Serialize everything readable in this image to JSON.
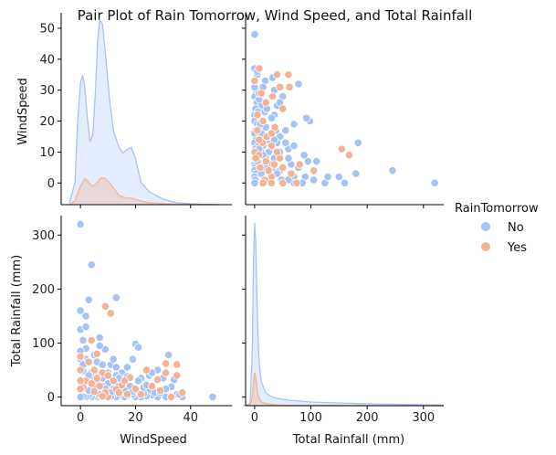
{
  "chart_data": {
    "type": "scatter",
    "title": "Pair Plot of Rain Tomorrow, Wind Speed, and Total Rainfall",
    "variables": [
      "WindSpeed",
      "Total Rainfall (mm)"
    ],
    "hue": {
      "title": "RainTomorrow",
      "levels": [
        {
          "name": "No",
          "color": "#a6c3f8"
        },
        {
          "name": "Yes",
          "color": "#f4b394"
        }
      ]
    },
    "axes": {
      "WindSpeed": {
        "label": "WindSpeed",
        "lim": [
          -7,
          55
        ],
        "ticks": [
          0,
          20,
          40
        ],
        "diag_ticks": [
          0,
          10,
          20,
          30,
          40,
          50
        ]
      },
      "Total Rainfall (mm)": {
        "label": "Total Rainfall (mm)",
        "lim": [
          -16,
          336
        ],
        "ticks": [
          0,
          100,
          200,
          300
        ]
      }
    },
    "diag_density_ylim": [
      0,
      1.0
    ],
    "diagonal": {
      "WindSpeed": {
        "type": "kde",
        "x": [
          -4,
          -2,
          -1,
          0,
          0.8,
          1.5,
          2.5,
          3.5,
          4.5,
          5.5,
          6.2,
          7.0,
          8.0,
          9.0,
          10.5,
          12,
          14,
          15.5,
          17,
          18.5,
          20,
          22,
          25,
          30,
          35,
          40,
          45,
          50
        ],
        "series": [
          {
            "name": "No",
            "values": [
              0.01,
              0.12,
              0.45,
              0.66,
              0.7,
              0.65,
              0.47,
              0.34,
              0.38,
              0.63,
              0.88,
              1.0,
              0.98,
              0.83,
              0.58,
              0.4,
              0.31,
              0.28,
              0.3,
              0.31,
              0.25,
              0.12,
              0.07,
              0.03,
              0.01,
              0.005,
              0.002,
              0.0
            ]
          },
          {
            "name": "Yes",
            "values": [
              0.0,
              0.02,
              0.06,
              0.1,
              0.12,
              0.14,
              0.13,
              0.11,
              0.1,
              0.11,
              0.12,
              0.14,
              0.145,
              0.14,
              0.12,
              0.09,
              0.05,
              0.04,
              0.035,
              0.035,
              0.03,
              0.02,
              0.01,
              0.005,
              0.002,
              0.0,
              0.0,
              0.0
            ]
          }
        ]
      },
      "Total Rainfall (mm)": {
        "type": "kde",
        "x": [
          -20,
          -8,
          -4,
          -2,
          0,
          2,
          4,
          6,
          8,
          12,
          20,
          30,
          40,
          60,
          100,
          200,
          320,
          336
        ],
        "series": [
          {
            "name": "No",
            "values": [
              0.0,
              0.01,
              0.3,
              0.78,
              1.0,
              0.9,
              0.62,
              0.38,
              0.24,
              0.13,
              0.07,
              0.05,
              0.04,
              0.03,
              0.02,
              0.01,
              0.004,
              0.003
            ]
          },
          {
            "name": "Yes",
            "values": [
              0.0,
              0.005,
              0.05,
              0.12,
              0.18,
              0.16,
              0.1,
              0.06,
              0.04,
              0.02,
              0.01,
              0.006,
              0.003,
              0.002,
              0.001,
              0.0,
              0.0,
              0.0
            ]
          }
        ]
      }
    },
    "points": {
      "No": [
        [
          48,
          0
        ],
        [
          37,
          0
        ],
        [
          35,
          5
        ],
        [
          33,
          0
        ],
        [
          30,
          10
        ],
        [
          29,
          3
        ],
        [
          28,
          0
        ],
        [
          26,
          4
        ],
        [
          25,
          12
        ],
        [
          24,
          2
        ],
        [
          23,
          6
        ],
        [
          22,
          0
        ],
        [
          20,
          0
        ],
        [
          19,
          5
        ],
        [
          18,
          9
        ],
        [
          17,
          2
        ],
        [
          16,
          0
        ],
        [
          15,
          14
        ],
        [
          14,
          3
        ],
        [
          13,
          0
        ],
        [
          12,
          6
        ],
        [
          11,
          1
        ],
        [
          10,
          0
        ],
        [
          9,
          4
        ],
        [
          8,
          0
        ],
        [
          7,
          2
        ],
        [
          6,
          0
        ],
        [
          5,
          1
        ],
        [
          4,
          0
        ],
        [
          3,
          2
        ],
        [
          2,
          0
        ],
        [
          1,
          1
        ],
        [
          0,
          0
        ],
        [
          33,
          19
        ],
        [
          28,
          50
        ],
        [
          25,
          40
        ],
        [
          22,
          35
        ],
        [
          20,
          98
        ],
        [
          19,
          70
        ],
        [
          17,
          55
        ],
        [
          15,
          45
        ],
        [
          13,
          40
        ],
        [
          12,
          30
        ],
        [
          11,
          60
        ],
        [
          10,
          25
        ],
        [
          9,
          88
        ],
        [
          8,
          35
        ],
        [
          7,
          110
        ],
        [
          6,
          65
        ],
        [
          5,
          32
        ],
        [
          4,
          18
        ],
        [
          3,
          12
        ],
        [
          2,
          90
        ],
        [
          1,
          48
        ],
        [
          0,
          30
        ],
        [
          31,
          0
        ],
        [
          27,
          8
        ],
        [
          23,
          18
        ],
        [
          21,
          30
        ],
        [
          18,
          20
        ],
        [
          16,
          12
        ],
        [
          14,
          24
        ],
        [
          12,
          15
        ],
        [
          10,
          12
        ],
        [
          8,
          20
        ],
        [
          6,
          28
        ],
        [
          4,
          45
        ],
        [
          2,
          70
        ],
        [
          1,
          105
        ],
        [
          0,
          125
        ],
        [
          0,
          160
        ],
        [
          0,
          320
        ],
        [
          2,
          150
        ],
        [
          2,
          130
        ],
        [
          3,
          180
        ],
        [
          4,
          245
        ],
        [
          5,
          20
        ],
        [
          6,
          10
        ],
        [
          7,
          5
        ],
        [
          9,
          15
        ],
        [
          11,
          8
        ],
        [
          13,
          184
        ],
        [
          13,
          55
        ],
        [
          15,
          25
        ],
        [
          17,
          38
        ],
        [
          19,
          10
        ],
        [
          21,
          92
        ],
        [
          24,
          22
        ],
        [
          26,
          45
        ],
        [
          29,
          8
        ],
        [
          31,
          15
        ],
        [
          34,
          32
        ],
        [
          36,
          5
        ],
        [
          30,
          35
        ],
        [
          32,
          78
        ],
        [
          0,
          70
        ],
        [
          0,
          85
        ],
        [
          1,
          60
        ],
        [
          3,
          40
        ],
        [
          5,
          78
        ],
        [
          7,
          95
        ],
        [
          8,
          60
        ],
        [
          10,
          45
        ],
        [
          12,
          70
        ],
        [
          14,
          35
        ]
      ],
      "Yes": [
        [
          37,
          8
        ],
        [
          35,
          60
        ],
        [
          35,
          40
        ],
        [
          33,
          0
        ],
        [
          31,
          62
        ],
        [
          31,
          45
        ],
        [
          29,
          12
        ],
        [
          28,
          32
        ],
        [
          26,
          20
        ],
        [
          24,
          50
        ],
        [
          22,
          5
        ],
        [
          20,
          15
        ],
        [
          18,
          36
        ],
        [
          17,
          5
        ],
        [
          15,
          22
        ],
        [
          13,
          14
        ],
        [
          12,
          30
        ],
        [
          11,
          155
        ],
        [
          10,
          0
        ],
        [
          9,
          168
        ],
        [
          9,
          8
        ],
        [
          8,
          45
        ],
        [
          7,
          20
        ],
        [
          6,
          35
        ],
        [
          5,
          50
        ],
        [
          5,
          10
        ],
        [
          4,
          105
        ],
        [
          3,
          65
        ],
        [
          2,
          30
        ],
        [
          1,
          18
        ],
        [
          0,
          75
        ],
        [
          0,
          50
        ],
        [
          0,
          15
        ],
        [
          0,
          30
        ],
        [
          4,
          25
        ],
        [
          6,
          80
        ],
        [
          8,
          2
        ],
        [
          10,
          40
        ],
        [
          14,
          8
        ],
        [
          16,
          30
        ]
      ]
    }
  }
}
